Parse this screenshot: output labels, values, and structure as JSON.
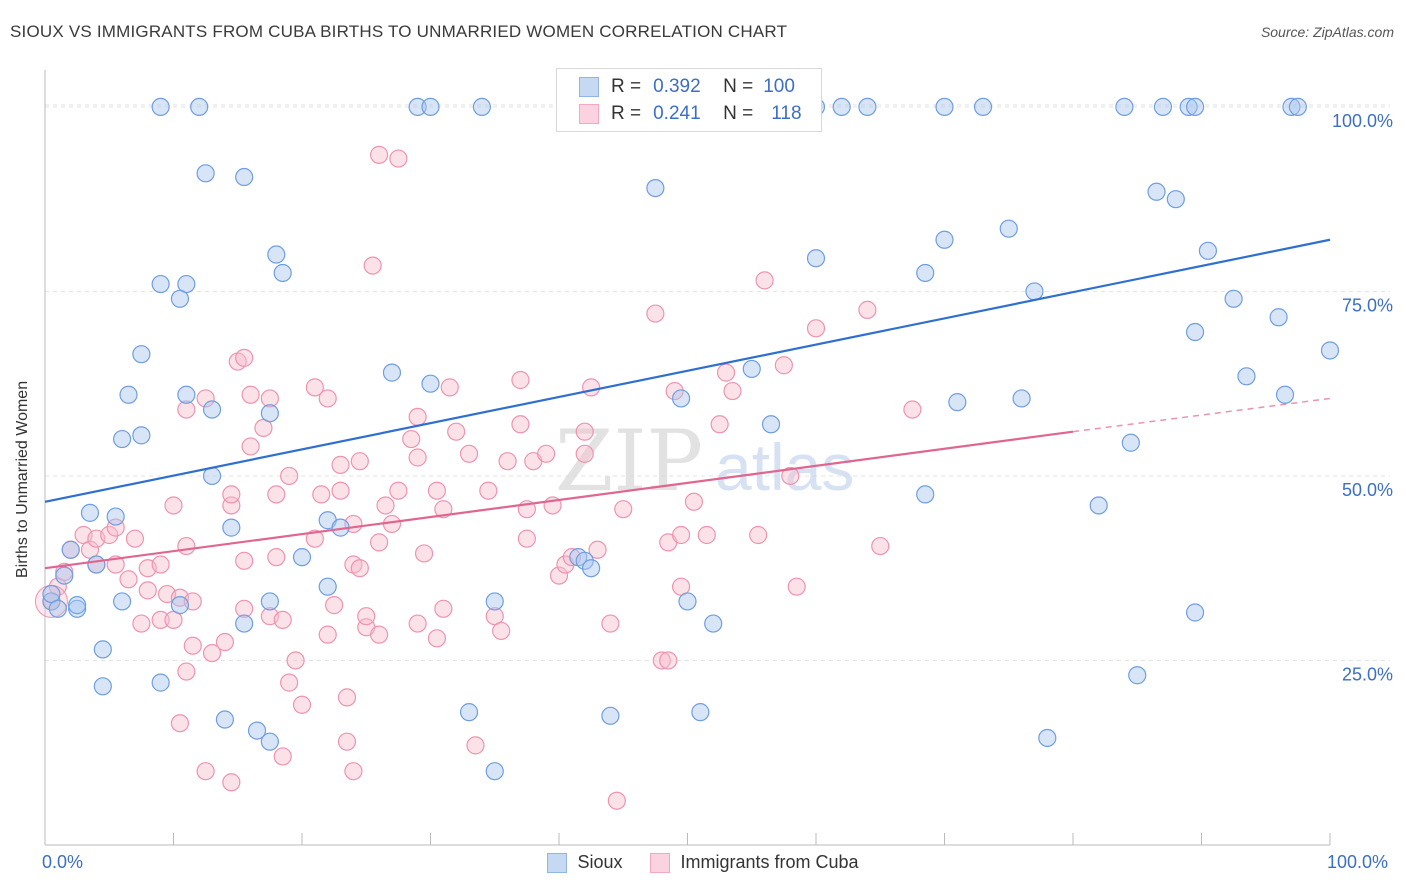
{
  "header": {
    "title": "SIOUX VS IMMIGRANTS FROM CUBA BIRTHS TO UNMARRIED WOMEN CORRELATION CHART",
    "source": "Source: ZipAtlas.com"
  },
  "watermark": {
    "zip": "ZIP",
    "atlas": "atlas"
  },
  "legend": {
    "r_label": "R =",
    "n_label": "N =",
    "series": [
      {
        "name": "Sioux",
        "r": "0.392",
        "n": "100",
        "color": "#8fb4e8"
      },
      {
        "name": "Immigrants from Cuba",
        "r": "0.241",
        "n": "118",
        "color": "#f4a9c0"
      }
    ]
  },
  "chart_data": {
    "type": "scatter",
    "title": "SIOUX VS IMMIGRANTS FROM CUBA BIRTHS TO UNMARRIED WOMEN CORRELATION CHART",
    "xlabel": "",
    "ylabel": "Births to Unmarried Women",
    "xlim": [
      0,
      100
    ],
    "ylim": [
      0,
      105
    ],
    "x_tick_labels": [
      "0.0%",
      "100.0%"
    ],
    "y_tick_labels": [
      "25.0%",
      "50.0%",
      "75.0%",
      "100.0%"
    ],
    "y_ticks": [
      25,
      50,
      75,
      100
    ],
    "grid": true,
    "series": [
      {
        "name": "Sioux",
        "color": "#6f9ee0",
        "line_color": "#2f6fcf",
        "trend": {
          "x0": 0,
          "y0": 46.5,
          "x1": 100,
          "y1": 82.0
        },
        "points": [
          [
            9,
            100
          ],
          [
            12,
            100
          ],
          [
            29,
            100
          ],
          [
            30,
            100
          ],
          [
            34,
            100
          ],
          [
            43,
            100
          ],
          [
            55,
            100
          ],
          [
            60,
            100
          ],
          [
            62,
            100
          ],
          [
            64,
            100
          ],
          [
            70,
            100
          ],
          [
            73,
            100
          ],
          [
            84,
            100
          ],
          [
            87,
            100
          ],
          [
            89,
            100
          ],
          [
            89.5,
            100
          ],
          [
            97,
            100
          ],
          [
            97.5,
            100
          ],
          [
            12.5,
            91
          ],
          [
            15.5,
            90.5
          ],
          [
            47.5,
            89
          ],
          [
            86.5,
            88.5
          ],
          [
            88,
            87.5
          ],
          [
            75,
            83.5
          ],
          [
            70,
            82
          ],
          [
            18,
            80
          ],
          [
            18.5,
            77.5
          ],
          [
            60,
            79.5
          ],
          [
            68.5,
            77.5
          ],
          [
            90.5,
            80.5
          ],
          [
            9,
            76
          ],
          [
            11,
            76
          ],
          [
            10.5,
            74
          ],
          [
            77,
            75
          ],
          [
            92.5,
            74
          ],
          [
            96,
            71.5
          ],
          [
            89.5,
            69.5
          ],
          [
            7.5,
            66.5
          ],
          [
            100,
            67
          ],
          [
            27,
            64
          ],
          [
            55,
            64.5
          ],
          [
            30,
            62.5
          ],
          [
            11,
            61
          ],
          [
            6.5,
            61
          ],
          [
            49.5,
            60.5
          ],
          [
            71,
            60
          ],
          [
            76,
            60.5
          ],
          [
            93.5,
            63.5
          ],
          [
            96.5,
            61
          ],
          [
            13,
            59
          ],
          [
            17.5,
            58.5
          ],
          [
            56.5,
            57
          ],
          [
            7.5,
            55.5
          ],
          [
            6,
            55
          ],
          [
            84.5,
            54.5
          ],
          [
            13,
            50
          ],
          [
            68.5,
            47.5
          ],
          [
            82,
            46
          ],
          [
            3.5,
            45
          ],
          [
            5.5,
            44.5
          ],
          [
            22,
            44
          ],
          [
            23,
            43
          ],
          [
            14.5,
            43
          ],
          [
            2,
            40
          ],
          [
            4,
            38
          ],
          [
            1.5,
            36.5
          ],
          [
            0.5,
            33
          ],
          [
            0.5,
            34
          ],
          [
            2.5,
            32
          ],
          [
            2.5,
            32.5
          ],
          [
            6,
            33
          ],
          [
            10.5,
            32.5
          ],
          [
            17.5,
            33
          ],
          [
            22,
            35
          ],
          [
            20,
            39
          ],
          [
            41.5,
            39
          ],
          [
            42,
            38.5
          ],
          [
            42.5,
            37.5
          ],
          [
            50,
            33
          ],
          [
            35,
            33
          ],
          [
            1,
            32
          ],
          [
            89.5,
            31.5
          ],
          [
            15.5,
            30
          ],
          [
            52,
            30
          ],
          [
            4.5,
            26.5
          ],
          [
            85,
            23
          ],
          [
            4.5,
            21.5
          ],
          [
            9,
            22
          ],
          [
            33,
            18
          ],
          [
            44,
            17.5
          ],
          [
            51,
            18
          ],
          [
            14,
            17
          ],
          [
            16.5,
            15.5
          ],
          [
            17.5,
            14
          ],
          [
            78,
            14.5
          ],
          [
            35,
            10
          ]
        ]
      },
      {
        "name": "Immigrants from Cuba",
        "color": "#f2a3bb",
        "line_color": "#e0668f",
        "trend": {
          "x0": 0,
          "y0": 37.5,
          "x1": 80,
          "y1": 56.0
        },
        "trend_dashed": {
          "x0": 80,
          "y0": 56.0,
          "x1": 100,
          "y1": 60.5
        },
        "points": [
          [
            0.5,
            33
          ],
          [
            1,
            35
          ],
          [
            1.5,
            37
          ],
          [
            2,
            40
          ],
          [
            3,
            42
          ],
          [
            3.5,
            40
          ],
          [
            4,
            38
          ],
          [
            4,
            41.5
          ],
          [
            5,
            42
          ],
          [
            5.5,
            38
          ],
          [
            5.5,
            43
          ],
          [
            6.5,
            36
          ],
          [
            7,
            41.5
          ],
          [
            8,
            37.5
          ],
          [
            7.5,
            30
          ],
          [
            8,
            34.5
          ],
          [
            9,
            30.5
          ],
          [
            9.5,
            34
          ],
          [
            10,
            30.5
          ],
          [
            10.5,
            33.5
          ],
          [
            11,
            40.5
          ],
          [
            9,
            38
          ],
          [
            10,
            46
          ],
          [
            11,
            59
          ],
          [
            11.5,
            33
          ],
          [
            12.5,
            60.5
          ],
          [
            11.5,
            27
          ],
          [
            13,
            26
          ],
          [
            14,
            27.5
          ],
          [
            14.5,
            46
          ],
          [
            14.5,
            47.5
          ],
          [
            15.5,
            32
          ],
          [
            15.5,
            38.5
          ],
          [
            16,
            54
          ],
          [
            16,
            61
          ],
          [
            15,
            65.5
          ],
          [
            15.5,
            66
          ],
          [
            17.5,
            60.5
          ],
          [
            17,
            56.5
          ],
          [
            18,
            47.5
          ],
          [
            18,
            39
          ],
          [
            17.5,
            31
          ],
          [
            18.5,
            30.5
          ],
          [
            19,
            22
          ],
          [
            19.5,
            25
          ],
          [
            19,
            50
          ],
          [
            21,
            41.5
          ],
          [
            21.5,
            47.5
          ],
          [
            22,
            28.5
          ],
          [
            22.5,
            32.5
          ],
          [
            22,
            60.5
          ],
          [
            21,
            62
          ],
          [
            23,
            51.5
          ],
          [
            23,
            48
          ],
          [
            24,
            43.5
          ],
          [
            24.5,
            52
          ],
          [
            24,
            38
          ],
          [
            25,
            29.5
          ],
          [
            23.5,
            20
          ],
          [
            24,
            10
          ],
          [
            25,
            31
          ],
          [
            24.5,
            37.5
          ],
          [
            26,
            28.5
          ],
          [
            26.5,
            46
          ],
          [
            26,
            41
          ],
          [
            27,
            43.5
          ],
          [
            27.5,
            48
          ],
          [
            28.5,
            55
          ],
          [
            29,
            52.5
          ],
          [
            29,
            58
          ],
          [
            29,
            30
          ],
          [
            29.5,
            39.5
          ],
          [
            30.5,
            48
          ],
          [
            31,
            45.5
          ],
          [
            31,
            32
          ],
          [
            30.5,
            28
          ],
          [
            31.5,
            62
          ],
          [
            32,
            56
          ],
          [
            33,
            53
          ],
          [
            34.5,
            48
          ],
          [
            35,
            31
          ],
          [
            35.5,
            29
          ],
          [
            36,
            52
          ],
          [
            37,
            63
          ],
          [
            37,
            57
          ],
          [
            37.5,
            45.5
          ],
          [
            38,
            52
          ],
          [
            39,
            53
          ],
          [
            39.5,
            46
          ],
          [
            40,
            36.5
          ],
          [
            40.5,
            38
          ],
          [
            42,
            56
          ],
          [
            42,
            53
          ],
          [
            41,
            39
          ],
          [
            42.5,
            62
          ],
          [
            43,
            40
          ],
          [
            44,
            30
          ],
          [
            44.5,
            6
          ],
          [
            45,
            45.5
          ],
          [
            47.5,
            72
          ],
          [
            48.5,
            41
          ],
          [
            48,
            25
          ],
          [
            48.5,
            25
          ],
          [
            49,
            61.5
          ],
          [
            49.5,
            42
          ],
          [
            49.5,
            35
          ],
          [
            50.5,
            46.5
          ],
          [
            51.5,
            42
          ],
          [
            52.5,
            57
          ],
          [
            53,
            64
          ],
          [
            53.5,
            61.5
          ],
          [
            55.5,
            42
          ],
          [
            56,
            76.5
          ],
          [
            57.5,
            65
          ],
          [
            58,
            50
          ],
          [
            58.5,
            35
          ],
          [
            60,
            70
          ],
          [
            64,
            72.5
          ],
          [
            65,
            40.5
          ],
          [
            67.5,
            59
          ],
          [
            11,
            23.5
          ],
          [
            10.5,
            16.5
          ],
          [
            12.5,
            10
          ],
          [
            14.5,
            8.5
          ],
          [
            18.5,
            12
          ],
          [
            20,
            19
          ],
          [
            23.5,
            14
          ],
          [
            25.5,
            78.5
          ],
          [
            26,
            93.5
          ],
          [
            27.5,
            93
          ],
          [
            33.5,
            13.5
          ],
          [
            37.5,
            41.5
          ]
        ]
      }
    ]
  }
}
